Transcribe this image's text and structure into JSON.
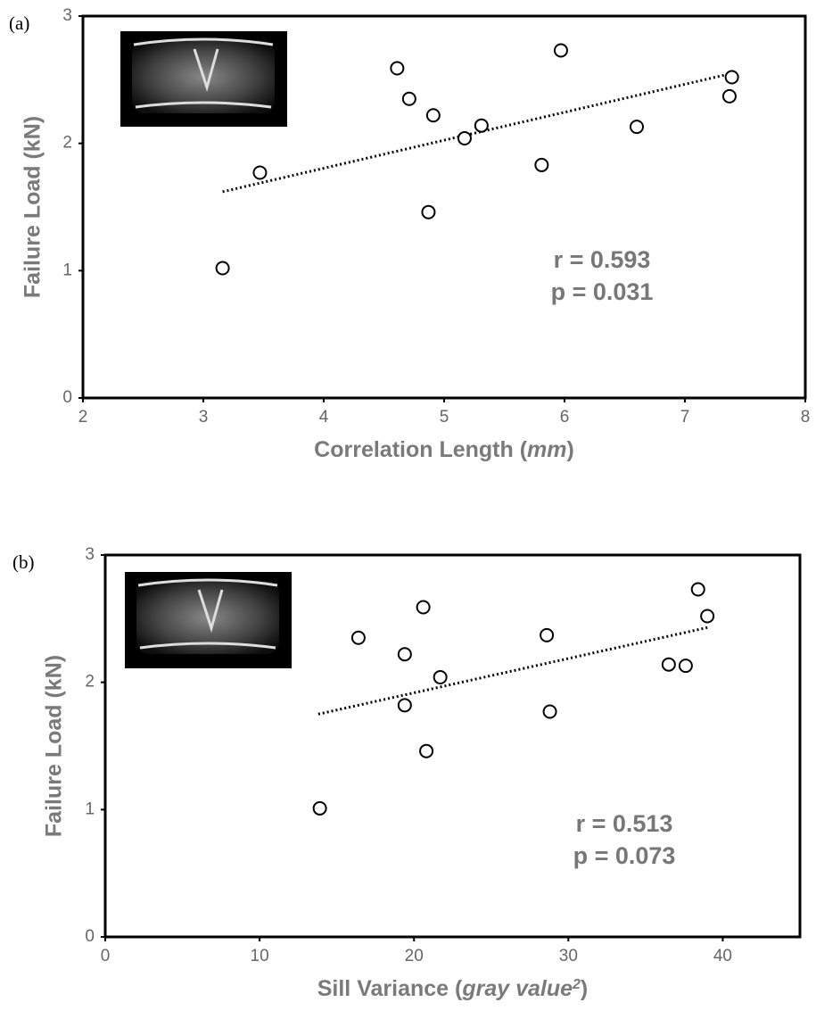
{
  "chart_data": [
    {
      "type": "scatter",
      "panel_label": "(a)",
      "xlabel": [
        {
          "text": "Correlation Length ("
        },
        {
          "text": "mm",
          "style": "italic"
        },
        {
          "text": ")"
        }
      ],
      "ylabel": "Failure Load (kN)",
      "x": [
        3.16,
        3.47,
        4.61,
        4.71,
        4.91,
        4.87,
        5.17,
        5.31,
        5.81,
        5.97,
        6.6,
        7.37,
        7.39
      ],
      "y": [
        1.02,
        1.77,
        2.59,
        2.35,
        2.22,
        1.46,
        2.04,
        2.14,
        1.83,
        2.73,
        2.13,
        2.37,
        2.52
      ],
      "trendline": {
        "x": [
          3.16,
          7.39
        ],
        "y": [
          1.62,
          2.55
        ]
      },
      "annotations": [
        "r = 0.593",
        "p = 0.031"
      ],
      "xlim": [
        2,
        8
      ],
      "xticks": [
        2,
        3,
        4,
        5,
        6,
        7,
        8
      ],
      "ylim": [
        0,
        3
      ],
      "yticks": [
        0,
        1,
        2,
        3
      ]
    },
    {
      "type": "scatter",
      "panel_label": "(b)",
      "xlabel": [
        {
          "text": "Sill Variance ("
        },
        {
          "text": "gray value",
          "style": "italic"
        },
        {
          "text": "2",
          "style": "italic-sup"
        },
        {
          "text": ")"
        }
      ],
      "ylabel": "Failure Load (kN)",
      "x": [
        13.9,
        16.4,
        19.4,
        19.4,
        20.6,
        20.8,
        21.7,
        28.6,
        28.8,
        36.5,
        37.6,
        38.4,
        39.0
      ],
      "y": [
        1.01,
        2.35,
        2.22,
        1.82,
        2.59,
        1.46,
        2.04,
        2.37,
        1.77,
        2.14,
        2.13,
        2.73,
        2.52
      ],
      "trendline": {
        "x": [
          13.8,
          39.0
        ],
        "y": [
          1.75,
          2.43
        ]
      },
      "annotations": [
        "r = 0.513",
        "p = 0.073"
      ],
      "xlim": [
        0,
        45
      ],
      "xticks": [
        0,
        10,
        20,
        30,
        40
      ],
      "ylim": [
        0,
        3
      ],
      "yticks": [
        0,
        1,
        2,
        3
      ]
    }
  ]
}
